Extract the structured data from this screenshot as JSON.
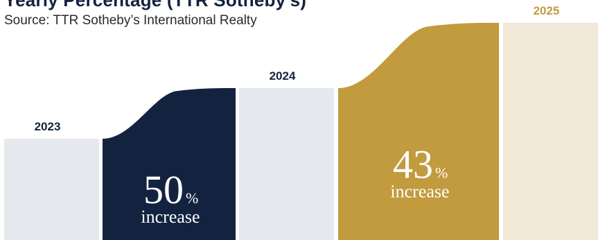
{
  "header": {
    "title_fragment": "Yearly Percentage (TTR Sotheby's)",
    "source": "Source: TTR Sotheby’s International Realty"
  },
  "colors": {
    "navy": "#13233f",
    "gold": "#c29b3e",
    "light_gray": "#e5e9ee",
    "cream": "#f1e8d7"
  },
  "chart_data": {
    "type": "bar",
    "categories": [
      "2023",
      "2024",
      "2025"
    ],
    "values": [
      1,
      1.5,
      2.145
    ],
    "category_label_colors": [
      "#13233f",
      "#13233f",
      "#c29b3e"
    ],
    "bar_colors": [
      "#e5e9ee",
      "#e5e9ee",
      "#f1e8d7"
    ],
    "transitions": [
      {
        "from": "2023",
        "to": "2024",
        "percent": "50",
        "sign": "%",
        "word": "increase",
        "color": "#13233f"
      },
      {
        "from": "2024",
        "to": "2025",
        "percent": "43",
        "sign": "%",
        "word": "increase",
        "color": "#c29b3e"
      }
    ],
    "title": "",
    "xlabel": "",
    "ylabel": ""
  }
}
